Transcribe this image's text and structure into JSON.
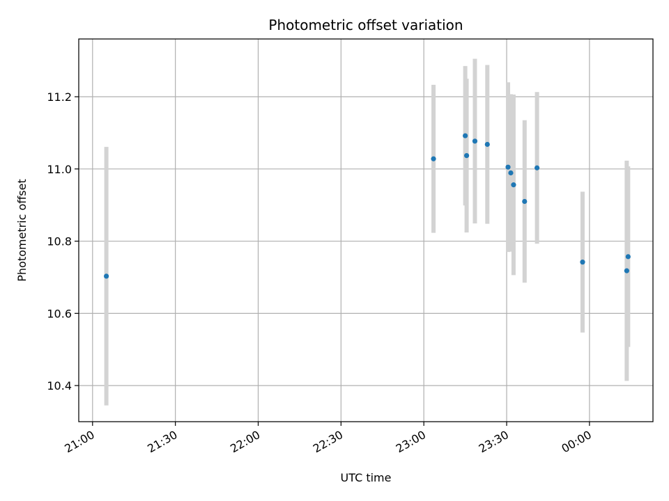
{
  "chart_data": {
    "type": "scatter",
    "title": "Photometric offset variation",
    "xlabel": "UTC time",
    "ylabel": "Photometric offset",
    "grid": true,
    "xlim": [
      "20:55",
      "00:23"
    ],
    "ylim": [
      10.3,
      11.36
    ],
    "x_ticks": [
      "21:00",
      "21:30",
      "22:00",
      "22:30",
      "23:00",
      "23:30",
      "00:00"
    ],
    "y_ticks": [
      10.4,
      10.6,
      10.8,
      11.0,
      11.2
    ],
    "marker_color": "#1f77b4",
    "errorbar_color": "#d3d3d3",
    "series": [
      {
        "points": [
          {
            "x": "21:05",
            "y": 10.703,
            "yerr": 0.358
          },
          {
            "x": "23:03.5",
            "y": 11.028,
            "yerr": 0.205
          },
          {
            "x": "23:15",
            "y": 11.092,
            "yerr": 0.193
          },
          {
            "x": "23:15.5",
            "y": 11.037,
            "yerr": 0.213
          },
          {
            "x": "23:18.5",
            "y": 11.077,
            "yerr": 0.228
          },
          {
            "x": "23:23",
            "y": 11.068,
            "yerr": 0.22
          },
          {
            "x": "23:30.5",
            "y": 11.005,
            "yerr": 0.235
          },
          {
            "x": "23:31.5",
            "y": 10.989,
            "yerr": 0.218
          },
          {
            "x": "23:32.5",
            "y": 10.956,
            "yerr": 0.25
          },
          {
            "x": "23:36.5",
            "y": 10.91,
            "yerr": 0.225
          },
          {
            "x": "23:41",
            "y": 11.003,
            "yerr": 0.21
          },
          {
            "x": "23:57.5",
            "y": 10.742,
            "yerr": 0.195
          },
          {
            "x": "00:13.5",
            "y": 10.718,
            "yerr": 0.305
          },
          {
            "x": "00:14",
            "y": 10.757,
            "yerr": 0.25
          }
        ]
      }
    ]
  }
}
